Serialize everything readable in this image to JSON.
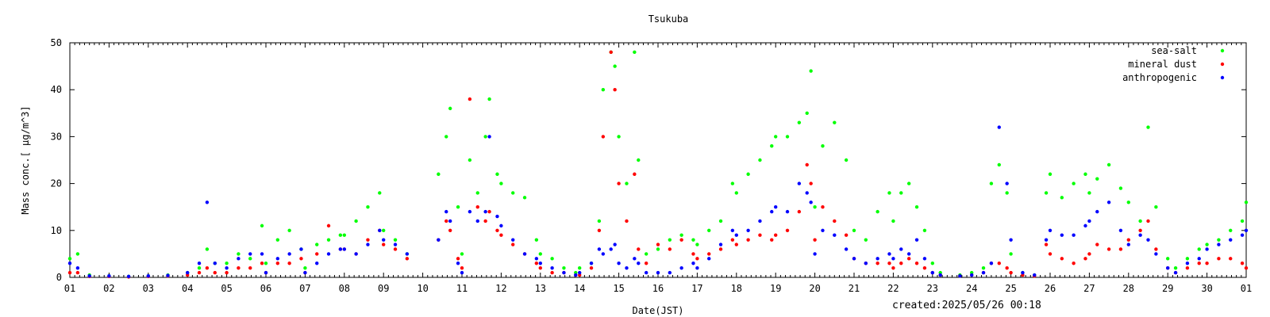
{
  "chart_data": {
    "type": "scatter",
    "title": "Tsukuba",
    "xlabel": "Date(JST)",
    "ylabel": "Mass conc.[ μg/m^3]",
    "ylim": [
      0,
      50
    ],
    "xlim": [
      1,
      31
    ],
    "x_tick_labels": [
      "01",
      "02",
      "03",
      "04",
      "05",
      "06",
      "07",
      "08",
      "09",
      "10",
      "11",
      "12",
      "13",
      "14",
      "15",
      "16",
      "17",
      "18",
      "19",
      "20",
      "21",
      "22",
      "23",
      "24",
      "25",
      "26",
      "27",
      "28",
      "29",
      "30",
      "01"
    ],
    "y_tick_labels": [
      "0",
      "10",
      "20",
      "30",
      "40",
      "50"
    ],
    "y_ticks": [
      0,
      10,
      20,
      30,
      40,
      50
    ],
    "grid": false,
    "legend_position": "top-right",
    "series": [
      {
        "name": "sea-salt",
        "color": "#00ff00",
        "x": [
          1.0,
          1.2,
          1.5,
          2.0,
          2.5,
          3.0,
          3.5,
          4.0,
          4.3,
          4.5,
          4.7,
          5.0,
          5.3,
          5.6,
          5.9,
          6.0,
          6.3,
          6.6,
          6.9,
          7.0,
          7.3,
          7.6,
          7.9,
          8.0,
          8.3,
          8.6,
          8.9,
          9.0,
          9.3,
          9.6,
          10.4,
          10.6,
          10.7,
          10.9,
          11.0,
          11.2,
          11.4,
          11.6,
          11.7,
          11.9,
          12.0,
          12.3,
          12.6,
          12.9,
          13.0,
          13.3,
          13.6,
          13.9,
          14.0,
          14.3,
          14.5,
          14.6,
          14.8,
          14.9,
          15.0,
          15.2,
          15.4,
          15.5,
          15.7,
          16.0,
          16.3,
          16.6,
          16.9,
          17.0,
          17.3,
          17.6,
          17.9,
          18.0,
          18.3,
          18.6,
          18.9,
          19.0,
          19.3,
          19.6,
          19.8,
          19.9,
          20.0,
          20.2,
          20.5,
          20.8,
          21.0,
          21.3,
          21.6,
          21.9,
          22.0,
          22.2,
          22.4,
          22.6,
          22.8,
          23.0,
          23.2,
          23.7,
          24.0,
          24.3,
          24.5,
          24.7,
          24.9,
          25.0,
          25.3,
          25.6,
          25.9,
          26.0,
          26.3,
          26.6,
          26.9,
          27.0,
          27.2,
          27.5,
          27.8,
          28.0,
          28.3,
          28.5,
          28.7,
          29.0,
          29.2,
          29.5,
          29.8,
          30.0,
          30.3,
          30.6,
          30.9,
          31.0
        ],
        "y": [
          4,
          5,
          0.5,
          0.3,
          0.2,
          0.3,
          0.5,
          1,
          2,
          6,
          3,
          3,
          5,
          4,
          11,
          3,
          8,
          10,
          6,
          2,
          7,
          8,
          9,
          9,
          12,
          15,
          18,
          10,
          8,
          5,
          22,
          30,
          36,
          15,
          5,
          25,
          18,
          30,
          38,
          22,
          20,
          18,
          17,
          8,
          5,
          4,
          2,
          1,
          2,
          3,
          12,
          40,
          48,
          45,
          30,
          20,
          48,
          25,
          5,
          6,
          8,
          9,
          8,
          7,
          10,
          12,
          20,
          18,
          22,
          25,
          28,
          30,
          30,
          33,
          35,
          44,
          15,
          28,
          33,
          25,
          10,
          8,
          14,
          18,
          12,
          18,
          20,
          15,
          10,
          3,
          1,
          0.5,
          1,
          2,
          20,
          24,
          18,
          5,
          1,
          0.5,
          18,
          22,
          17,
          20,
          22,
          18,
          21,
          24,
          19,
          16,
          12,
          32,
          15,
          4,
          2,
          4,
          6,
          7,
          8,
          10,
          12,
          16
        ]
      },
      {
        "name": "mineral dust",
        "color": "#ff0000",
        "x": [
          1.0,
          1.2,
          1.5,
          2.0,
          2.5,
          3.0,
          3.5,
          4.0,
          4.3,
          4.5,
          4.7,
          5.0,
          5.3,
          5.6,
          5.9,
          6.0,
          6.3,
          6.6,
          6.9,
          7.0,
          7.3,
          7.6,
          7.9,
          8.0,
          8.3,
          8.6,
          8.9,
          9.0,
          9.3,
          9.6,
          10.4,
          10.6,
          10.7,
          10.9,
          11.0,
          11.2,
          11.4,
          11.6,
          11.7,
          11.9,
          12.0,
          12.3,
          12.6,
          12.9,
          13.0,
          13.3,
          13.6,
          13.9,
          14.0,
          14.3,
          14.5,
          14.6,
          14.8,
          14.9,
          15.0,
          15.2,
          15.4,
          15.5,
          15.7,
          16.0,
          16.3,
          16.6,
          16.9,
          17.0,
          17.3,
          17.6,
          17.9,
          18.0,
          18.3,
          18.6,
          18.9,
          19.0,
          19.3,
          19.6,
          19.8,
          19.9,
          20.0,
          20.2,
          20.5,
          20.8,
          21.0,
          21.3,
          21.6,
          21.9,
          22.0,
          22.2,
          22.4,
          22.6,
          22.8,
          23.0,
          23.2,
          23.7,
          24.0,
          24.3,
          24.5,
          24.7,
          24.9,
          25.0,
          25.3,
          25.6,
          25.9,
          26.0,
          26.3,
          26.6,
          26.9,
          27.0,
          27.2,
          27.5,
          27.8,
          28.0,
          28.3,
          28.5,
          28.7,
          29.0,
          29.2,
          29.5,
          29.8,
          30.0,
          30.3,
          30.6,
          30.9,
          31.0
        ],
        "y": [
          1,
          1,
          0.2,
          0.2,
          0.1,
          0.2,
          0.3,
          0.5,
          1,
          2,
          1,
          1,
          2,
          2,
          3,
          1,
          3,
          3,
          4,
          1,
          5,
          11,
          6,
          6,
          5,
          8,
          10,
          7,
          6,
          4,
          8,
          12,
          10,
          4,
          2,
          38,
          15,
          12,
          14,
          10,
          9,
          7,
          5,
          3,
          2,
          1,
          1,
          0.5,
          0.5,
          2,
          10,
          30,
          48,
          40,
          20,
          12,
          22,
          6,
          3,
          7,
          6,
          8,
          5,
          4,
          5,
          6,
          8,
          7,
          8,
          9,
          8,
          9,
          10,
          14,
          24,
          20,
          8,
          15,
          12,
          9,
          4,
          3,
          3,
          3,
          2,
          3,
          4,
          3,
          2,
          1,
          0.5,
          0.3,
          0.5,
          1,
          3,
          3,
          2,
          1,
          0.5,
          0.3,
          7,
          5,
          4,
          3,
          4,
          5,
          7,
          6,
          6,
          8,
          10,
          12,
          6,
          2,
          1,
          2,
          3,
          3,
          4,
          4,
          3,
          2
        ]
      },
      {
        "name": "anthropogenic",
        "color": "#0000ff",
        "x": [
          1.0,
          1.2,
          1.5,
          2.0,
          2.5,
          3.0,
          3.5,
          4.0,
          4.3,
          4.5,
          4.7,
          5.0,
          5.3,
          5.6,
          5.9,
          6.0,
          6.3,
          6.6,
          6.9,
          7.0,
          7.3,
          7.6,
          7.9,
          8.0,
          8.3,
          8.6,
          8.9,
          9.0,
          9.3,
          9.6,
          10.4,
          10.6,
          10.7,
          10.9,
          11.0,
          11.2,
          11.4,
          11.6,
          11.7,
          11.9,
          12.0,
          12.3,
          12.6,
          12.9,
          13.0,
          13.3,
          13.6,
          13.9,
          14.0,
          14.3,
          14.5,
          14.6,
          14.8,
          14.9,
          15.0,
          15.2,
          15.4,
          15.5,
          15.7,
          16.0,
          16.3,
          16.6,
          16.9,
          17.0,
          17.3,
          17.6,
          17.9,
          18.0,
          18.3,
          18.6,
          18.9,
          19.0,
          19.3,
          19.6,
          19.8,
          19.9,
          20.0,
          20.2,
          20.5,
          20.8,
          21.0,
          21.3,
          21.6,
          21.9,
          22.0,
          22.2,
          22.4,
          22.6,
          22.8,
          23.0,
          23.2,
          23.7,
          24.0,
          24.3,
          24.5,
          24.7,
          24.9,
          25.0,
          25.3,
          25.6,
          25.9,
          26.0,
          26.3,
          26.6,
          26.9,
          27.0,
          27.2,
          27.5,
          27.8,
          28.0,
          28.3,
          28.5,
          28.7,
          29.0,
          29.2,
          29.5,
          29.8,
          30.0,
          30.3,
          30.6,
          30.9,
          31.0
        ],
        "y": [
          3,
          2,
          0.3,
          0.3,
          0.2,
          0.3,
          0.4,
          1,
          3,
          16,
          3,
          2,
          4,
          5,
          5,
          1,
          4,
          5,
          6,
          1,
          3,
          5,
          6,
          6,
          5,
          7,
          10,
          8,
          7,
          5,
          8,
          14,
          12,
          3,
          1,
          14,
          12,
          14,
          30,
          13,
          11,
          8,
          5,
          4,
          3,
          2,
          1,
          0.5,
          1,
          3,
          6,
          5,
          6,
          7,
          3,
          2,
          4,
          3,
          1,
          1,
          1,
          2,
          3,
          2,
          4,
          7,
          10,
          9,
          10,
          12,
          14,
          15,
          14,
          20,
          18,
          16,
          5,
          10,
          9,
          6,
          4,
          3,
          4,
          5,
          4,
          6,
          5,
          8,
          4,
          1,
          0.5,
          0.3,
          0.5,
          1,
          3,
          32,
          20,
          8,
          1,
          0.5,
          8,
          10,
          9,
          9,
          11,
          12,
          14,
          16,
          10,
          7,
          9,
          8,
          5,
          2,
          1,
          3,
          4,
          6,
          7,
          8,
          9,
          10
        ]
      }
    ]
  },
  "footer": {
    "created": "created:2025/05/26 00:18"
  }
}
